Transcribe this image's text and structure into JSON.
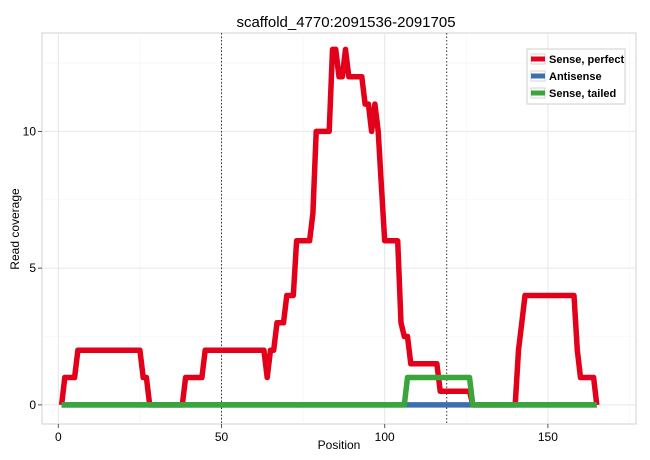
{
  "chart_data": {
    "type": "line",
    "title": "scaffold_4770:2091536-2091705",
    "xlabel": "Position",
    "ylabel": "Read coverage",
    "xlim": [
      -5,
      177
    ],
    "ylim": [
      -0.7,
      13.6
    ],
    "xticks": [
      0,
      50,
      100,
      150
    ],
    "yticks": [
      0,
      5,
      10
    ],
    "grid": true,
    "legend_position": "top-right",
    "vlines": [
      50,
      119
    ],
    "series": [
      {
        "name": "Sense, perfect",
        "color": "#e2001a",
        "points": [
          [
            1,
            0
          ],
          [
            2,
            1
          ],
          [
            5,
            1
          ],
          [
            6,
            2
          ],
          [
            25,
            2
          ],
          [
            26,
            1
          ],
          [
            27,
            1
          ],
          [
            28,
            0
          ],
          [
            38,
            0
          ],
          [
            39,
            1
          ],
          [
            44,
            1
          ],
          [
            45,
            2
          ],
          [
            63,
            2
          ],
          [
            64,
            1
          ],
          [
            65,
            2
          ],
          [
            66,
            2
          ],
          [
            67,
            3
          ],
          [
            69,
            3
          ],
          [
            70,
            4
          ],
          [
            72,
            4
          ],
          [
            73,
            6
          ],
          [
            77,
            6
          ],
          [
            78,
            7
          ],
          [
            79,
            10
          ],
          [
            83,
            10
          ],
          [
            84,
            13
          ],
          [
            85,
            13
          ],
          [
            86,
            12
          ],
          [
            87,
            12
          ],
          [
            88,
            13
          ],
          [
            89,
            12
          ],
          [
            93,
            12
          ],
          [
            94,
            11
          ],
          [
            95,
            11
          ],
          [
            96,
            10
          ],
          [
            97,
            11
          ],
          [
            98,
            10
          ],
          [
            99,
            8
          ],
          [
            100,
            6
          ],
          [
            104,
            6
          ],
          [
            105,
            3
          ],
          [
            106,
            2.5
          ],
          [
            107,
            2.5
          ],
          [
            108,
            1.5
          ],
          [
            112,
            1.5
          ],
          [
            113,
            1.5
          ],
          [
            114,
            1.5
          ],
          [
            115,
            1.5
          ],
          [
            116,
            1.5
          ],
          [
            117,
            0.5
          ],
          [
            120,
            0.5
          ],
          [
            125,
            0.5
          ],
          [
            126,
            0.5
          ],
          [
            127,
            0
          ],
          [
            140,
            0
          ],
          [
            141,
            2
          ],
          [
            142,
            3
          ],
          [
            143,
            4
          ],
          [
            158,
            4
          ],
          [
            159,
            2
          ],
          [
            160,
            1
          ],
          [
            164,
            1
          ],
          [
            165,
            0
          ]
        ]
      },
      {
        "name": "Antisense",
        "color": "#3a6fb0",
        "points": [
          [
            1,
            0
          ],
          [
            165,
            0
          ]
        ]
      },
      {
        "name": "Sense, tailed",
        "color": "#3aa53a",
        "points": [
          [
            1,
            0
          ],
          [
            106,
            0
          ],
          [
            107,
            1
          ],
          [
            126,
            1
          ],
          [
            127,
            0
          ],
          [
            165,
            0
          ]
        ]
      }
    ]
  }
}
